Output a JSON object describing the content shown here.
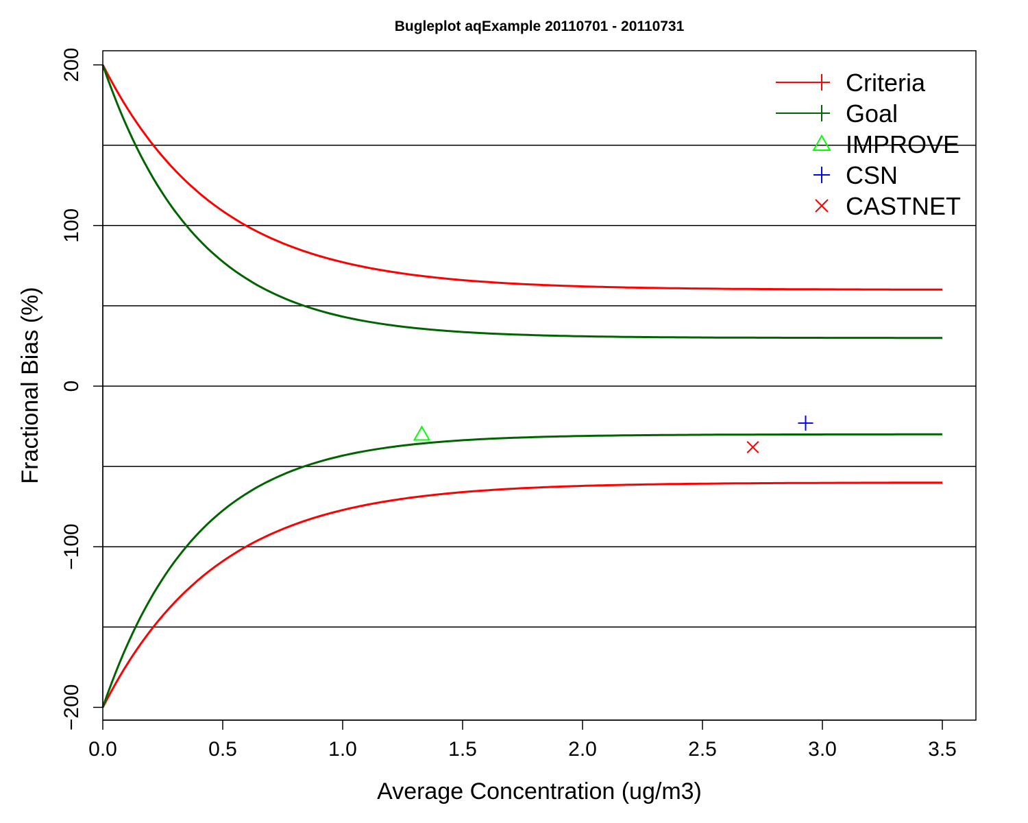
{
  "chart_data": {
    "type": "line",
    "title": "Bugleplot aqExample 20110701 - 20110731",
    "xlabel": "Average Concentration (ug/m3)",
    "ylabel": "Fractional Bias (%)",
    "xlim": [
      0,
      3.65
    ],
    "ylim": [
      -208,
      208
    ],
    "x_ticks": [
      0.0,
      0.5,
      1.0,
      1.5,
      2.0,
      2.5,
      3.0,
      3.5
    ],
    "x_tick_labels": [
      "0.0",
      "0.5",
      "1.0",
      "1.5",
      "2.0",
      "2.5",
      "3.0",
      "3.5"
    ],
    "y_ticks": [
      -200,
      -100,
      0,
      100,
      200
    ],
    "y_tick_labels": [
      "−200",
      "−100",
      "0",
      "100",
      "200"
    ],
    "gridlines_y": [
      -150,
      -100,
      -50,
      0,
      50,
      100,
      150
    ],
    "curves": [
      {
        "name": "Criteria",
        "color": "#ff0000",
        "asymptote": 60,
        "start": 200,
        "x": [
          0.0,
          0.25,
          0.5,
          0.75,
          1.0,
          1.25,
          1.5,
          1.75,
          2.0,
          2.5,
          3.0,
          3.5
        ],
        "upper": [
          200,
          145,
          115,
          93,
          80,
          72,
          67,
          64,
          63,
          61,
          60.5,
          60
        ],
        "lower": [
          -200,
          -145,
          -115,
          -93,
          -80,
          -72,
          -67,
          -64,
          -63,
          -61,
          -60.5,
          -60
        ]
      },
      {
        "name": "Goal",
        "color": "#006400",
        "asymptote": 30,
        "start": 200,
        "x": [
          0.0,
          0.25,
          0.5,
          0.75,
          1.0,
          1.25,
          1.5,
          1.75,
          2.0,
          2.5,
          3.0,
          3.5
        ],
        "upper": [
          200,
          135,
          91,
          67,
          53,
          44,
          39,
          35,
          33,
          31,
          30.3,
          30
        ],
        "lower": [
          -200,
          -135,
          -91,
          -67,
          -53,
          -44,
          -39,
          -35,
          -33,
          -31,
          -30.3,
          -30
        ]
      }
    ],
    "points": [
      {
        "name": "IMPROVE",
        "x": 1.33,
        "y": -30,
        "marker": "triangle",
        "color": "#00ff00"
      },
      {
        "name": "CSN",
        "x": 2.93,
        "y": -23,
        "marker": "plus",
        "color": "#0000ff"
      },
      {
        "name": "CASTNET",
        "x": 2.71,
        "y": -38,
        "marker": "cross",
        "color": "#ff0000"
      }
    ],
    "legend": {
      "placement": "top-right",
      "entries": [
        {
          "label": "Criteria",
          "type": "line-plus",
          "color": "#ff0000"
        },
        {
          "label": "Goal",
          "type": "line-plus",
          "color": "#006400"
        },
        {
          "label": "IMPROVE",
          "type": "triangle",
          "color": "#00ff00"
        },
        {
          "label": "CSN",
          "type": "plus",
          "color": "#0000ff"
        },
        {
          "label": "CASTNET",
          "type": "cross",
          "color": "#ff0000"
        }
      ]
    }
  }
}
